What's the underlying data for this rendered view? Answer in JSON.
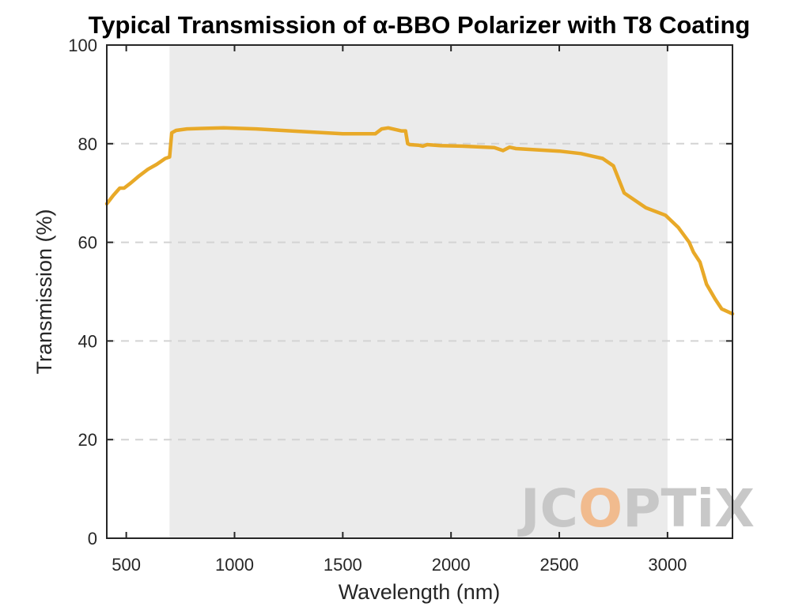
{
  "chart_data": {
    "type": "line",
    "title": "Typical Transmission of α-BBO Polarizer with T8 Coating",
    "xlabel": "Wavelength (nm)",
    "ylabel": "Transmission (%)",
    "xlim": [
      410,
      3300
    ],
    "ylim": [
      0,
      100
    ],
    "x_ticks": [
      500,
      1000,
      1500,
      2000,
      2500,
      3000
    ],
    "y_ticks": [
      0,
      20,
      40,
      60,
      80,
      100
    ],
    "grid": "horizontal dashed",
    "shaded_region": [
      700,
      3000
    ],
    "colors": {
      "line": "#E8A928",
      "shade": "#EBEBEB",
      "grid": "#D3D3D3",
      "axis": "#262626",
      "watermark_gray": "#C6C6C6",
      "watermark_accent": "#F2B98A"
    },
    "series": [
      {
        "x": [
          410,
          440,
          470,
          490,
          520,
          560,
          600,
          640,
          680,
          700,
          710,
          730,
          780,
          850,
          950,
          1100,
          1300,
          1500,
          1650,
          1680,
          1710,
          1740,
          1770,
          1790,
          1800,
          1810,
          1850,
          1870,
          1890,
          1950,
          2050,
          2200,
          2240,
          2270,
          2300,
          2500,
          2600,
          2650,
          2700,
          2750,
          2800,
          2900,
          2990,
          3050,
          3100,
          3120,
          3150,
          3180,
          3220,
          3250,
          3300
        ],
        "values": [
          67.8,
          69.5,
          71.0,
          71.0,
          72.0,
          73.5,
          74.8,
          75.8,
          77.0,
          77.3,
          82.2,
          82.7,
          83.0,
          83.1,
          83.2,
          83.0,
          82.5,
          82.0,
          82.0,
          83.0,
          83.2,
          82.9,
          82.6,
          82.6,
          80.0,
          79.8,
          79.7,
          79.5,
          79.8,
          79.6,
          79.5,
          79.2,
          78.6,
          79.3,
          79.0,
          78.5,
          78.0,
          77.5,
          77.0,
          75.5,
          70.0,
          67.0,
          65.5,
          63.0,
          60.0,
          58.0,
          56.0,
          51.5,
          48.5,
          46.5,
          45.5
        ]
      }
    ]
  },
  "watermark": {
    "text_parts": [
      "JC",
      "O",
      "PTiX"
    ],
    "icon": "jcoptix-logo"
  }
}
